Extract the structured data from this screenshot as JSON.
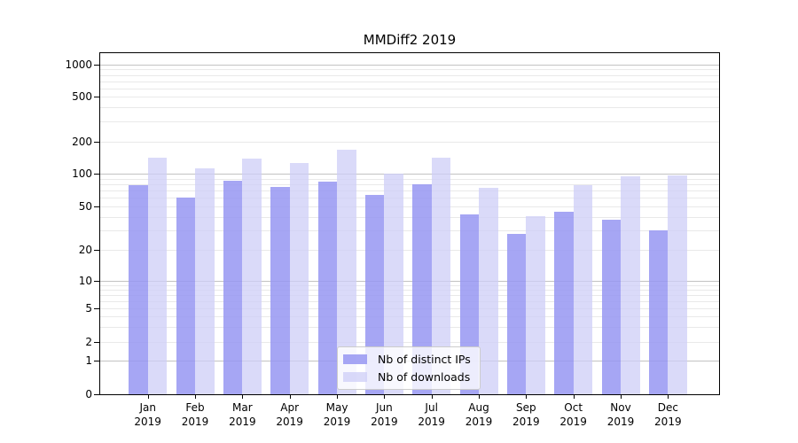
{
  "title": "MMDiff2 2019",
  "background": "#ffffff",
  "colors": {
    "ips_bar": "rgba(150,150,242,0.85)",
    "downloads_bar": "rgba(205,205,247,0.75)",
    "ips_bar_hex": "#a6a6f2",
    "downloads_bar_hex": "#d9d9f8",
    "grid_major": "#c3c3c3",
    "grid_minor": "#e9e9e9",
    "axis": "#000000"
  },
  "legend": {
    "entries": [
      "Nb of distinct IPs",
      "Nb of downloads"
    ]
  },
  "chart_data": {
    "type": "bar",
    "title": "MMDiff2 2019",
    "categories": [
      "Jan 2019",
      "Feb 2019",
      "Mar 2019",
      "Apr 2019",
      "May 2019",
      "Jun 2019",
      "Jul 2019",
      "Aug 2019",
      "Sep 2019",
      "Oct 2019",
      "Nov 2019",
      "Dec 2019"
    ],
    "category_line1": [
      "Jan",
      "Feb",
      "Mar",
      "Apr",
      "May",
      "Jun",
      "Jul",
      "Aug",
      "Sep",
      "Oct",
      "Nov",
      "Dec"
    ],
    "category_line2": "2019",
    "series": [
      {
        "name": "Nb of distinct IPs",
        "key": "ips",
        "values": [
          78,
          60,
          86,
          75,
          84,
          64,
          80,
          42,
          28,
          45,
          38,
          30
        ]
      },
      {
        "name": "Nb of downloads",
        "key": "downloads",
        "values": [
          142,
          113,
          139,
          126,
          168,
          100,
          142,
          74,
          41,
          78,
          95,
          96
        ]
      }
    ],
    "xlabel": "",
    "ylabel": "",
    "yscale": "log-like with zero baseline",
    "yticks": [
      0,
      1,
      2,
      5,
      10,
      20,
      50,
      100,
      200,
      500,
      1000
    ],
    "ylim": [
      0,
      1000
    ],
    "grid": true,
    "legend_position": "lower center"
  }
}
